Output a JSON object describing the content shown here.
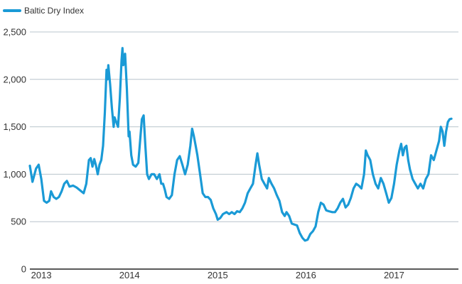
{
  "chart_data": {
    "type": "line",
    "title": "",
    "xlabel": "",
    "ylabel": "",
    "legend": {
      "position": "top-left"
    },
    "grid": {
      "horizontal": true,
      "vertical": false
    },
    "ylim": [
      0,
      2500
    ],
    "xlim": [
      2012.97,
      2017.83
    ],
    "y_ticks": [
      {
        "value": 0,
        "label": "0"
      },
      {
        "value": 500,
        "label": "500"
      },
      {
        "value": 1000,
        "label": "1,000"
      },
      {
        "value": 1500,
        "label": "1,500"
      },
      {
        "value": 2000,
        "label": "2,000"
      },
      {
        "value": 2500,
        "label": "2,500"
      }
    ],
    "x_ticks": [
      {
        "value": 2013.1,
        "label": "2013"
      },
      {
        "value": 2014.1,
        "label": "2014"
      },
      {
        "value": 2015.1,
        "label": "2015"
      },
      {
        "value": 2016.1,
        "label": "2016"
      },
      {
        "value": 2017.1,
        "label": "2017"
      }
    ],
    "series": [
      {
        "name": "Baltic Dry Index",
        "color": "#1a9ad6",
        "points": [
          [
            2012.97,
            1090
          ],
          [
            2013.0,
            920
          ],
          [
            2013.04,
            1060
          ],
          [
            2013.07,
            1100
          ],
          [
            2013.1,
            950
          ],
          [
            2013.13,
            720
          ],
          [
            2013.16,
            700
          ],
          [
            2013.19,
            720
          ],
          [
            2013.21,
            820
          ],
          [
            2013.24,
            760
          ],
          [
            2013.27,
            740
          ],
          [
            2013.3,
            760
          ],
          [
            2013.33,
            820
          ],
          [
            2013.36,
            900
          ],
          [
            2013.39,
            930
          ],
          [
            2013.42,
            870
          ],
          [
            2013.46,
            880
          ],
          [
            2013.5,
            860
          ],
          [
            2013.54,
            830
          ],
          [
            2013.58,
            800
          ],
          [
            2013.61,
            900
          ],
          [
            2013.64,
            1150
          ],
          [
            2013.66,
            1170
          ],
          [
            2013.68,
            1080
          ],
          [
            2013.7,
            1160
          ],
          [
            2013.72,
            1090
          ],
          [
            2013.74,
            1000
          ],
          [
            2013.76,
            1100
          ],
          [
            2013.78,
            1150
          ],
          [
            2013.8,
            1300
          ],
          [
            2013.82,
            1650
          ],
          [
            2013.84,
            2100
          ],
          [
            2013.85,
            2000
          ],
          [
            2013.86,
            2150
          ],
          [
            2013.88,
            1950
          ],
          [
            2013.9,
            1700
          ],
          [
            2013.92,
            1500
          ],
          [
            2013.93,
            1600
          ],
          [
            2013.95,
            1550
          ],
          [
            2013.97,
            1500
          ],
          [
            2013.99,
            1800
          ],
          [
            2014.01,
            2200
          ],
          [
            2014.02,
            2330
          ],
          [
            2014.03,
            2150
          ],
          [
            2014.05,
            2270
          ],
          [
            2014.07,
            1900
          ],
          [
            2014.09,
            1400
          ],
          [
            2014.1,
            1450
          ],
          [
            2014.12,
            1200
          ],
          [
            2014.14,
            1100
          ],
          [
            2014.17,
            1080
          ],
          [
            2014.2,
            1120
          ],
          [
            2014.22,
            1350
          ],
          [
            2014.24,
            1580
          ],
          [
            2014.26,
            1620
          ],
          [
            2014.28,
            1300
          ],
          [
            2014.3,
            1000
          ],
          [
            2014.32,
            950
          ],
          [
            2014.35,
            1000
          ],
          [
            2014.38,
            1000
          ],
          [
            2014.41,
            950
          ],
          [
            2014.44,
            1000
          ],
          [
            2014.46,
            900
          ],
          [
            2014.48,
            900
          ],
          [
            2014.5,
            840
          ],
          [
            2014.52,
            760
          ],
          [
            2014.55,
            740
          ],
          [
            2014.58,
            780
          ],
          [
            2014.61,
            1000
          ],
          [
            2014.64,
            1150
          ],
          [
            2014.67,
            1190
          ],
          [
            2014.7,
            1100
          ],
          [
            2014.73,
            1000
          ],
          [
            2014.76,
            1100
          ],
          [
            2014.79,
            1300
          ],
          [
            2014.81,
            1480
          ],
          [
            2014.83,
            1400
          ],
          [
            2014.85,
            1300
          ],
          [
            2014.87,
            1200
          ],
          [
            2014.9,
            1000
          ],
          [
            2014.93,
            800
          ],
          [
            2014.96,
            760
          ],
          [
            2014.99,
            760
          ],
          [
            2015.02,
            730
          ],
          [
            2015.05,
            640
          ],
          [
            2015.08,
            580
          ],
          [
            2015.1,
            520
          ],
          [
            2015.13,
            540
          ],
          [
            2015.16,
            580
          ],
          [
            2015.2,
            600
          ],
          [
            2015.23,
            580
          ],
          [
            2015.26,
            600
          ],
          [
            2015.29,
            580
          ],
          [
            2015.32,
            610
          ],
          [
            2015.35,
            600
          ],
          [
            2015.38,
            640
          ],
          [
            2015.41,
            700
          ],
          [
            2015.44,
            800
          ],
          [
            2015.47,
            850
          ],
          [
            2015.5,
            900
          ],
          [
            2015.53,
            1100
          ],
          [
            2015.55,
            1220
          ],
          [
            2015.57,
            1100
          ],
          [
            2015.6,
            950
          ],
          [
            2015.63,
            900
          ],
          [
            2015.66,
            850
          ],
          [
            2015.68,
            960
          ],
          [
            2015.71,
            900
          ],
          [
            2015.74,
            850
          ],
          [
            2015.77,
            780
          ],
          [
            2015.8,
            720
          ],
          [
            2015.83,
            600
          ],
          [
            2015.86,
            560
          ],
          [
            2015.88,
            600
          ],
          [
            2015.91,
            560
          ],
          [
            2015.94,
            480
          ],
          [
            2015.97,
            470
          ],
          [
            2016.0,
            460
          ],
          [
            2016.03,
            380
          ],
          [
            2016.06,
            330
          ],
          [
            2016.09,
            300
          ],
          [
            2016.12,
            310
          ],
          [
            2016.15,
            370
          ],
          [
            2016.18,
            400
          ],
          [
            2016.21,
            450
          ],
          [
            2016.24,
            600
          ],
          [
            2016.27,
            700
          ],
          [
            2016.3,
            680
          ],
          [
            2016.33,
            620
          ],
          [
            2016.36,
            610
          ],
          [
            2016.4,
            600
          ],
          [
            2016.43,
            600
          ],
          [
            2016.46,
            640
          ],
          [
            2016.49,
            700
          ],
          [
            2016.52,
            740
          ],
          [
            2016.55,
            650
          ],
          [
            2016.58,
            680
          ],
          [
            2016.61,
            750
          ],
          [
            2016.64,
            850
          ],
          [
            2016.67,
            900
          ],
          [
            2016.7,
            880
          ],
          [
            2016.73,
            850
          ],
          [
            2016.76,
            1000
          ],
          [
            2016.78,
            1250
          ],
          [
            2016.8,
            1200
          ],
          [
            2016.83,
            1150
          ],
          [
            2016.86,
            1000
          ],
          [
            2016.89,
            900
          ],
          [
            2016.92,
            850
          ],
          [
            2016.95,
            960
          ],
          [
            2016.98,
            900
          ],
          [
            2017.01,
            800
          ],
          [
            2017.04,
            700
          ],
          [
            2017.07,
            750
          ],
          [
            2017.1,
            900
          ],
          [
            2017.13,
            1100
          ],
          [
            2017.16,
            1250
          ],
          [
            2017.18,
            1320
          ],
          [
            2017.2,
            1200
          ],
          [
            2017.22,
            1280
          ],
          [
            2017.24,
            1300
          ],
          [
            2017.26,
            1150
          ],
          [
            2017.28,
            1050
          ],
          [
            2017.31,
            950
          ],
          [
            2017.34,
            900
          ],
          [
            2017.37,
            850
          ],
          [
            2017.4,
            900
          ],
          [
            2017.43,
            850
          ],
          [
            2017.46,
            950
          ],
          [
            2017.49,
            1000
          ],
          [
            2017.52,
            1200
          ],
          [
            2017.55,
            1150
          ],
          [
            2017.58,
            1250
          ],
          [
            2017.61,
            1350
          ],
          [
            2017.63,
            1500
          ],
          [
            2017.65,
            1450
          ],
          [
            2017.67,
            1300
          ],
          [
            2017.69,
            1450
          ],
          [
            2017.71,
            1550
          ],
          [
            2017.73,
            1580
          ],
          [
            2017.75,
            1585
          ]
        ]
      }
    ]
  }
}
